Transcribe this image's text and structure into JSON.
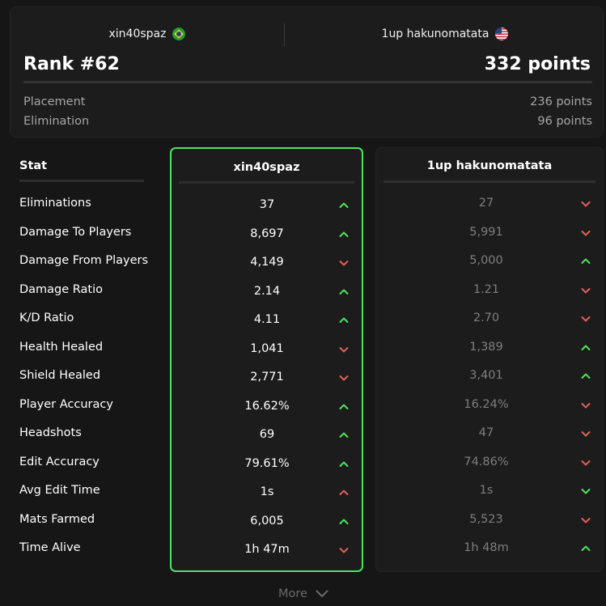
{
  "header": {
    "player1": {
      "name": "xin40spaz",
      "flag": "brazil-flag-icon"
    },
    "player2": {
      "name": "1up hakunomatata",
      "flag": "usa-flag-icon"
    },
    "rank": "Rank #62",
    "points": "332 points",
    "placement_label": "Placement",
    "placement_value": "236 points",
    "elimination_label": "Elimination",
    "elimination_value": "96 points"
  },
  "table": {
    "stat_header": "Stat",
    "col1_header": "xin40spaz",
    "col2_header": "1up hakunomatata",
    "rows": [
      {
        "label": "Eliminations",
        "v1": "37",
        "a1": "up",
        "v2": "27",
        "a2": "down"
      },
      {
        "label": "Damage To Players",
        "v1": "8,697",
        "a1": "up",
        "v2": "5,991",
        "a2": "down"
      },
      {
        "label": "Damage From Players",
        "v1": "4,149",
        "a1": "down",
        "v2": "5,000",
        "a2": "up"
      },
      {
        "label": "Damage Ratio",
        "v1": "2.14",
        "a1": "up",
        "v2": "1.21",
        "a2": "down"
      },
      {
        "label": "K/D Ratio",
        "v1": "4.11",
        "a1": "up",
        "v2": "2.70",
        "a2": "down"
      },
      {
        "label": "Health Healed",
        "v1": "1,041",
        "a1": "down",
        "v2": "1,389",
        "a2": "up"
      },
      {
        "label": "Shield Healed",
        "v1": "2,771",
        "a1": "down",
        "v2": "3,401",
        "a2": "up"
      },
      {
        "label": "Player Accuracy",
        "v1": "16.62%",
        "a1": "up",
        "v2": "16.24%",
        "a2": "down"
      },
      {
        "label": "Headshots",
        "v1": "69",
        "a1": "up",
        "v2": "47",
        "a2": "down"
      },
      {
        "label": "Edit Accuracy",
        "v1": "79.61%",
        "a1": "up",
        "v2": "74.86%",
        "a2": "down"
      },
      {
        "label": "Avg Edit Time",
        "v1": "1s",
        "a1": "up-red",
        "v2": "1s",
        "a2": "down-green"
      },
      {
        "label": "Mats Farmed",
        "v1": "6,005",
        "a1": "up",
        "v2": "5,523",
        "a2": "down"
      },
      {
        "label": "Time Alive",
        "v1": "1h 47m",
        "a1": "down",
        "v2": "1h 48m",
        "a2": "up"
      }
    ]
  },
  "footer": {
    "more_label": "More"
  },
  "colors": {
    "accent_green": "#4fe35d",
    "red": "#e0605a",
    "bg": "#161616",
    "card": "#1c1c1c"
  }
}
